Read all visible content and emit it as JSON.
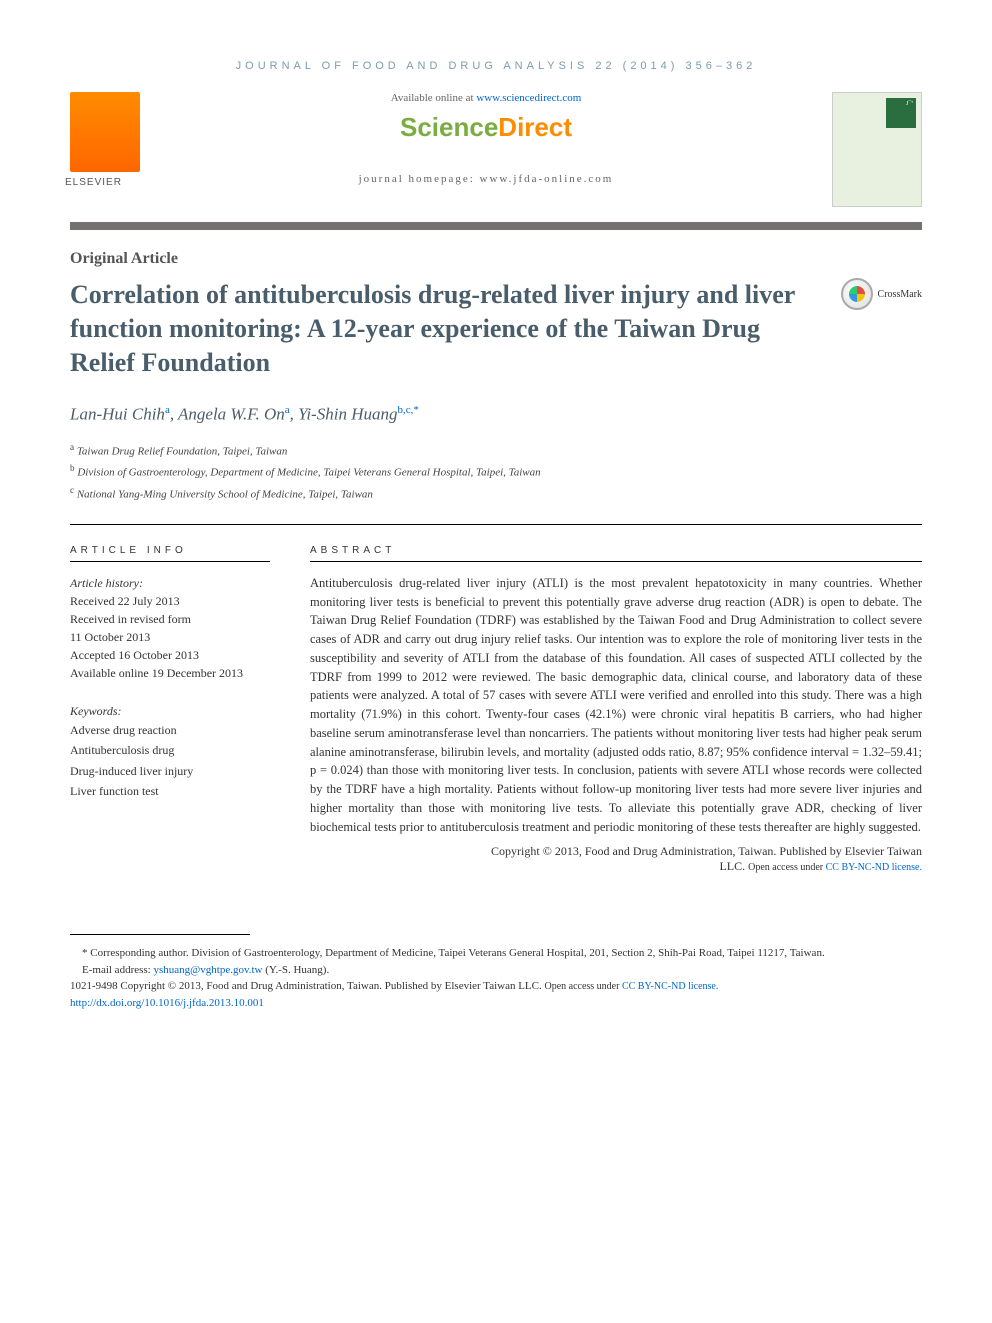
{
  "journal_ref": "JOURNAL OF FOOD AND DRUG ANALYSIS 22 (2014) 356–362",
  "header": {
    "available_prefix": "Available online at ",
    "available_url": "www.sciencedirect.com",
    "brand_left": "Science",
    "brand_right": "Direct",
    "homepage_label": "journal homepage: www.jfda-online.com"
  },
  "crossmark_label": "CrossMark",
  "article_type": "Original Article",
  "title": "Correlation of antituberculosis drug-related liver injury and liver function monitoring: A 12-year experience of the Taiwan Drug Relief Foundation",
  "authors_html": "Lan-Hui Chih<sup>a</sup>, Angela W.F. On<sup>a</sup>, Yi-Shin Huang<sup>b,c,*</sup>",
  "affiliations": [
    {
      "sup": "a",
      "text": "Taiwan Drug Relief Foundation, Taipei, Taiwan"
    },
    {
      "sup": "b",
      "text": "Division of Gastroenterology, Department of Medicine, Taipei Veterans General Hospital, Taipei, Taiwan"
    },
    {
      "sup": "c",
      "text": "National Yang-Ming University School of Medicine, Taipei, Taiwan"
    }
  ],
  "info_heading": "ARTICLE INFO",
  "abstract_heading": "ABSTRACT",
  "history_label": "Article history:",
  "history": [
    "Received 22 July 2013",
    "Received in revised form",
    "11 October 2013",
    "Accepted 16 October 2013",
    "Available online 19 December 2013"
  ],
  "keywords_label": "Keywords:",
  "keywords": [
    "Adverse drug reaction",
    "Antituberculosis drug",
    "Drug-induced liver injury",
    "Liver function test"
  ],
  "abstract": "Antituberculosis drug-related liver injury (ATLI) is the most prevalent hepatotoxicity in many countries. Whether monitoring liver tests is beneficial to prevent this potentially grave adverse drug reaction (ADR) is open to debate. The Taiwan Drug Relief Foundation (TDRF) was established by the Taiwan Food and Drug Administration to collect severe cases of ADR and carry out drug injury relief tasks. Our intention was to explore the role of monitoring liver tests in the susceptibility and severity of ATLI from the database of this foundation. All cases of suspected ATLI collected by the TDRF from 1999 to 2012 were reviewed. The basic demographic data, clinical course, and laboratory data of these patients were analyzed. A total of 57 cases with severe ATLI were verified and enrolled into this study. There was a high mortality (71.9%) in this cohort. Twenty-four cases (42.1%) were chronic viral hepatitis B carriers, who had higher baseline serum aminotransferase level than noncarriers. The patients without monitoring liver tests had higher peak serum alanine aminotransferase, bilirubin levels, and mortality (adjusted odds ratio, 8.87; 95% confidence interval = 1.32–59.41; p = 0.024) than those with monitoring liver tests. In conclusion, patients with severe ATLI whose records were collected by the TDRF have a high mortality. Patients without follow-up monitoring liver tests had more severe liver injuries and higher mortality than those with monitoring live tests. To alleviate this potentially grave ADR, checking of liver biochemical tests prior to antituberculosis treatment and periodic monitoring of these tests thereafter are highly suggested.",
  "copyright": {
    "line1": "Copyright © 2013, Food and Drug Administration, Taiwan. Published by Elsevier Taiwan",
    "line2_prefix": "LLC. ",
    "license_label": "Open access under ",
    "license_link": "CC BY-NC-ND license."
  },
  "footnotes": {
    "corresponding": "* Corresponding author. Division of Gastroenterology, Department of Medicine, Taipei Veterans General Hospital, 201, Section 2, Shih-Pai Road, Taipei 11217, Taiwan.",
    "email_label": "E-mail address: ",
    "email": "yshuang@vghtpe.gov.tw",
    "email_suffix": " (Y.-S. Huang).",
    "issn_line": "1021-9498 Copyright © 2013, Food and Drug Administration, Taiwan. Published by Elsevier Taiwan LLC. ",
    "issn_license_label": "Open access under ",
    "issn_license_link": "CC BY-NC-ND license.",
    "doi": "http://dx.doi.org/10.1016/j.jfda.2013.10.001"
  },
  "colors": {
    "journal_ref": "#7a9cb0",
    "title": "#4a5d6b",
    "link": "#0066cc",
    "divider": "#767171",
    "sd_green": "#7aad3f",
    "sd_orange": "#ff8c00"
  }
}
